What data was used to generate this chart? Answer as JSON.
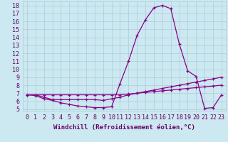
{
  "xlabel": "Windchill (Refroidissement éolien,°C)",
  "background_color": "#cce8f0",
  "line_color": "#880088",
  "xlim": [
    -0.5,
    23.5
  ],
  "ylim": [
    4.8,
    18.5
  ],
  "yticks": [
    5,
    6,
    7,
    8,
    9,
    10,
    11,
    12,
    13,
    14,
    15,
    16,
    17,
    18
  ],
  "xticks": [
    0,
    1,
    2,
    3,
    4,
    5,
    6,
    7,
    8,
    9,
    10,
    11,
    12,
    13,
    14,
    15,
    16,
    17,
    18,
    19,
    20,
    21,
    22,
    23
  ],
  "line1_x": [
    0,
    1,
    2,
    3,
    4,
    5,
    6,
    7,
    8,
    9,
    10,
    11,
    12,
    13,
    14,
    15,
    16,
    17,
    18,
    19,
    20,
    21,
    22,
    23
  ],
  "line1_y": [
    6.8,
    6.7,
    6.3,
    6.1,
    5.8,
    5.6,
    5.4,
    5.3,
    5.2,
    5.2,
    5.3,
    8.2,
    11.0,
    14.2,
    16.2,
    17.7,
    18.0,
    17.6,
    13.2,
    9.8,
    9.1,
    5.1,
    5.2,
    6.8
  ],
  "line2_x": [
    0,
    1,
    2,
    3,
    4,
    5,
    6,
    7,
    8,
    9,
    10,
    11,
    12,
    13,
    14,
    15,
    16,
    17,
    18,
    19,
    20,
    21,
    22,
    23
  ],
  "line2_y": [
    6.8,
    6.8,
    6.8,
    6.8,
    6.8,
    6.8,
    6.8,
    6.8,
    6.8,
    6.8,
    6.8,
    6.8,
    6.9,
    7.0,
    7.1,
    7.2,
    7.3,
    7.4,
    7.5,
    7.6,
    7.7,
    7.8,
    7.9,
    8.0
  ],
  "line3_x": [
    0,
    1,
    2,
    3,
    4,
    5,
    6,
    7,
    8,
    9,
    10,
    11,
    12,
    13,
    14,
    15,
    16,
    17,
    18,
    19,
    20,
    21,
    22,
    23
  ],
  "line3_y": [
    6.8,
    6.8,
    6.5,
    6.2,
    6.2,
    6.2,
    6.2,
    6.2,
    6.2,
    6.1,
    6.3,
    6.5,
    6.8,
    7.0,
    7.2,
    7.4,
    7.6,
    7.8,
    8.0,
    8.2,
    8.4,
    8.6,
    8.8,
    9.0
  ],
  "marker": "+",
  "markersize": 3,
  "linewidth": 0.9,
  "grid_color": "#aaccdd",
  "font_color": "#660066",
  "xlabel_fontsize": 6.5,
  "tick_fontsize": 6.0
}
